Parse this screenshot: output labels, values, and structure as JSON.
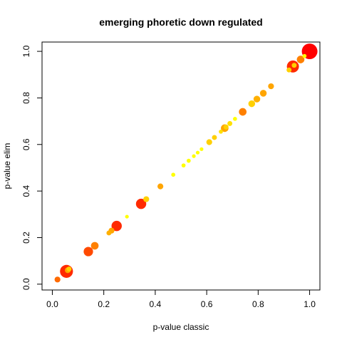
{
  "chart_data": {
    "type": "scatter",
    "title": "emerging phoretic down regulated",
    "xlabel": "p-value classic",
    "ylabel": "p-value elim",
    "xlim": [
      -0.04,
      1.04
    ],
    "ylim": [
      -0.025,
      1.04
    ],
    "xticks": [
      0.0,
      0.2,
      0.4,
      0.6,
      0.8,
      1.0
    ],
    "xtick_labels": [
      "0.0",
      "0.2",
      "0.4",
      "0.6",
      "0.8",
      "1.0"
    ],
    "yticks": [
      0.0,
      0.2,
      0.4,
      0.6,
      0.8,
      1.0
    ],
    "ytick_labels": [
      "0.0",
      "0.2",
      "0.4",
      "0.6",
      "0.8",
      "1.0"
    ],
    "grid": false,
    "legend": "none",
    "color_scale": [
      "#ffff00",
      "#ffd000",
      "#ffa500",
      "#ff6a00",
      "#ff2a00"
    ],
    "points": [
      {
        "x": 0.02,
        "y": 0.02,
        "size": 2,
        "color": "#ff6a00"
      },
      {
        "x": 0.055,
        "y": 0.055,
        "size": 6,
        "color": "#ff2a00"
      },
      {
        "x": 0.06,
        "y": 0.06,
        "size": 2,
        "color": "#ffa500"
      },
      {
        "x": 0.065,
        "y": 0.065,
        "size": 1.5,
        "color": "#ffd000"
      },
      {
        "x": 0.14,
        "y": 0.14,
        "size": 4,
        "color": "#ff4a00"
      },
      {
        "x": 0.165,
        "y": 0.165,
        "size": 3,
        "color": "#ff8000"
      },
      {
        "x": 0.22,
        "y": 0.22,
        "size": 1.5,
        "color": "#ffb000"
      },
      {
        "x": 0.23,
        "y": 0.23,
        "size": 2,
        "color": "#ffa500"
      },
      {
        "x": 0.25,
        "y": 0.25,
        "size": 4.5,
        "color": "#ff2a00"
      },
      {
        "x": 0.29,
        "y": 0.29,
        "size": 0.8,
        "color": "#ffff00"
      },
      {
        "x": 0.345,
        "y": 0.345,
        "size": 4.5,
        "color": "#ff2a00"
      },
      {
        "x": 0.365,
        "y": 0.365,
        "size": 2,
        "color": "#ffd000"
      },
      {
        "x": 0.42,
        "y": 0.42,
        "size": 2,
        "color": "#ffa500"
      },
      {
        "x": 0.47,
        "y": 0.47,
        "size": 1,
        "color": "#ffff00"
      },
      {
        "x": 0.51,
        "y": 0.51,
        "size": 1,
        "color": "#ffff00"
      },
      {
        "x": 0.53,
        "y": 0.53,
        "size": 1,
        "color": "#ffff00"
      },
      {
        "x": 0.55,
        "y": 0.55,
        "size": 0.8,
        "color": "#ffff00"
      },
      {
        "x": 0.565,
        "y": 0.565,
        "size": 0.8,
        "color": "#ffff00"
      },
      {
        "x": 0.58,
        "y": 0.58,
        "size": 0.8,
        "color": "#ffff00"
      },
      {
        "x": 0.61,
        "y": 0.61,
        "size": 2,
        "color": "#ffd000"
      },
      {
        "x": 0.63,
        "y": 0.63,
        "size": 1.5,
        "color": "#ffd000"
      },
      {
        "x": 0.655,
        "y": 0.655,
        "size": 1,
        "color": "#ffe000"
      },
      {
        "x": 0.67,
        "y": 0.67,
        "size": 3,
        "color": "#ffa500"
      },
      {
        "x": 0.675,
        "y": 0.675,
        "size": 1.5,
        "color": "#ffd000"
      },
      {
        "x": 0.69,
        "y": 0.69,
        "size": 1.5,
        "color": "#ffe000"
      },
      {
        "x": 0.71,
        "y": 0.71,
        "size": 1,
        "color": "#ffff00"
      },
      {
        "x": 0.74,
        "y": 0.74,
        "size": 3,
        "color": "#ff8000"
      },
      {
        "x": 0.775,
        "y": 0.775,
        "size": 2.5,
        "color": "#ffd000"
      },
      {
        "x": 0.795,
        "y": 0.795,
        "size": 2.5,
        "color": "#ffb000"
      },
      {
        "x": 0.82,
        "y": 0.82,
        "size": 2.5,
        "color": "#ffa500"
      },
      {
        "x": 0.85,
        "y": 0.85,
        "size": 2,
        "color": "#ffa500"
      },
      {
        "x": 0.92,
        "y": 0.92,
        "size": 1.5,
        "color": "#ffd000"
      },
      {
        "x": 0.935,
        "y": 0.935,
        "size": 5.5,
        "color": "#ff2a00"
      },
      {
        "x": 0.94,
        "y": 0.94,
        "size": 1.5,
        "color": "#ffd000"
      },
      {
        "x": 0.965,
        "y": 0.965,
        "size": 3,
        "color": "#ff8000"
      },
      {
        "x": 0.98,
        "y": 0.98,
        "size": 1,
        "color": "#ffff00"
      },
      {
        "x": 1.0,
        "y": 1.0,
        "size": 7.5,
        "color": "#ff0000"
      }
    ]
  }
}
